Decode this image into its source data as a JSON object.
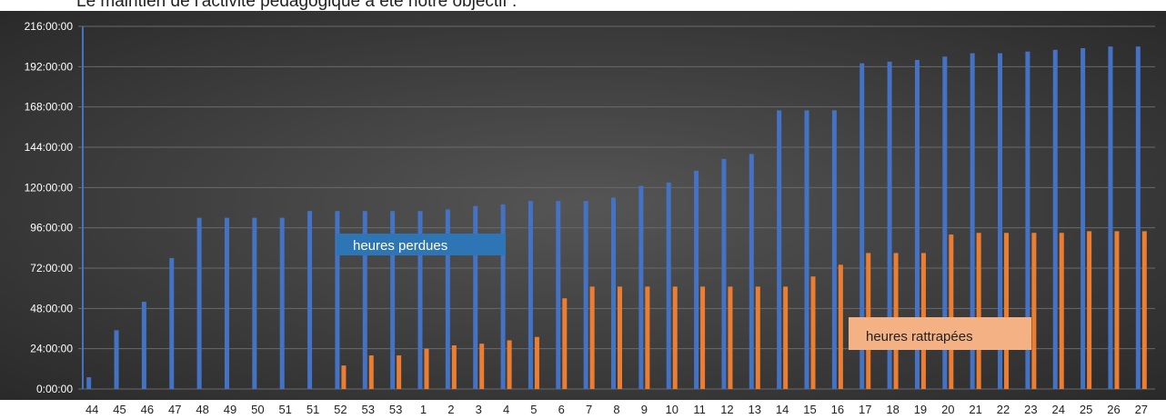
{
  "header": {
    "text": "Le maintien de l'activité pédagogique a été notre objectif :"
  },
  "chart_data": {
    "type": "bar",
    "title": "",
    "xlabel": "",
    "ylabel": "",
    "ylim_hours": [
      0,
      216
    ],
    "y_tick_labels": [
      "0:00:00",
      "24:00:00",
      "48:00:00",
      "72:00:00",
      "96:00:00",
      "120:00:00",
      "144:00:00",
      "168:00:00",
      "192:00:00",
      "216:00:00"
    ],
    "categories": [
      "44",
      "45",
      "46",
      "47",
      "48",
      "49",
      "50",
      "51",
      "51",
      "52",
      "53",
      "53",
      "1",
      "2",
      "3",
      "4",
      "5",
      "6",
      "7",
      "8",
      "9",
      "10",
      "11",
      "12",
      "13",
      "14",
      "15",
      "16",
      "17",
      "18",
      "19",
      "20",
      "21",
      "22",
      "23",
      "24",
      "25",
      "26",
      "27"
    ],
    "series": [
      {
        "name": "heures perdues",
        "color": "#4472c4",
        "values_hours": [
          7,
          35,
          52,
          78,
          102,
          102,
          102,
          102,
          106,
          106,
          106,
          106,
          106,
          107,
          109,
          110,
          112,
          112,
          112,
          114,
          121,
          123,
          130,
          137,
          140,
          166,
          166,
          166,
          194,
          195,
          196,
          198,
          200,
          200,
          201,
          202,
          203,
          204,
          204
        ]
      },
      {
        "name": "heures rattrapées",
        "color": "#ed7d31",
        "values_hours": [
          0,
          0,
          0,
          0,
          0,
          0,
          0,
          0,
          0,
          14,
          20,
          20,
          24,
          26,
          27,
          29,
          31,
          54,
          61,
          61,
          61,
          61,
          61,
          61,
          61,
          61,
          67,
          74,
          81,
          81,
          81,
          92,
          93,
          93,
          93,
          93,
          94,
          94,
          94
        ]
      }
    ],
    "grid": true,
    "legend_placement": "inline-labels"
  }
}
